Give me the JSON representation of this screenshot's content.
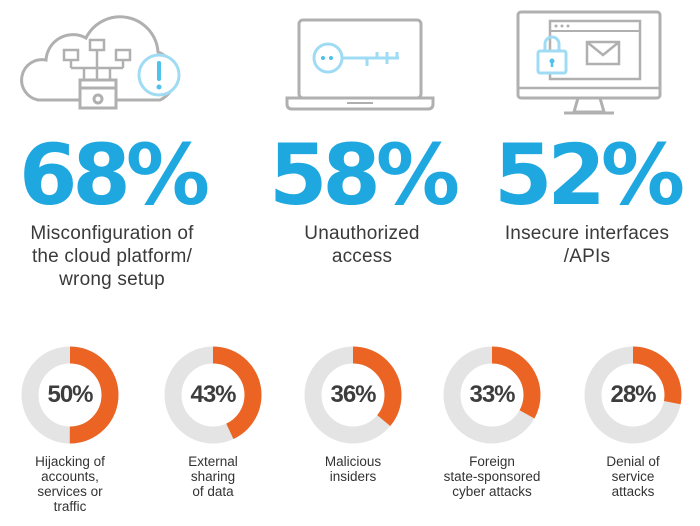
{
  "colors": {
    "accent": "#1fa8e0",
    "ring_fill": "#ec6423",
    "ring_track": "#e4e4e4",
    "icon_gray": "#b0b0b0",
    "icon_blue": "#4ec1ec"
  },
  "icons": [
    "cloud-config-icon",
    "laptop-key-icon",
    "monitor-lock-mail-icon"
  ],
  "chart_data": [
    {
      "type": "table",
      "rows": [
        {
          "value": 68,
          "label": "68%",
          "text_lines": [
            "Misconfiguration of",
            "the cloud platform/",
            "wrong setup"
          ]
        },
        {
          "value": 58,
          "label": "58%",
          "text_lines": [
            "Unauthorized",
            "access"
          ]
        },
        {
          "value": 52,
          "label": "52%",
          "text_lines": [
            "Insecure interfaces",
            "/APIs"
          ]
        }
      ]
    },
    {
      "type": "pie",
      "slices": [
        {
          "value": 50,
          "label": "50%",
          "text_lines": [
            "Hijacking of",
            "accounts,",
            "services or",
            "traffic"
          ]
        },
        {
          "value": 43,
          "label": "43%",
          "text_lines": [
            "External",
            "sharing",
            "of data"
          ]
        },
        {
          "value": 36,
          "label": "36%",
          "text_lines": [
            "Malicious",
            "insiders"
          ]
        },
        {
          "value": 33,
          "label": "33%",
          "text_lines": [
            "Foreign",
            "state-sponsored",
            "cyber attacks"
          ]
        },
        {
          "value": 28,
          "label": "28%",
          "text_lines": [
            "Denial of",
            "service",
            "attacks"
          ]
        }
      ]
    }
  ]
}
